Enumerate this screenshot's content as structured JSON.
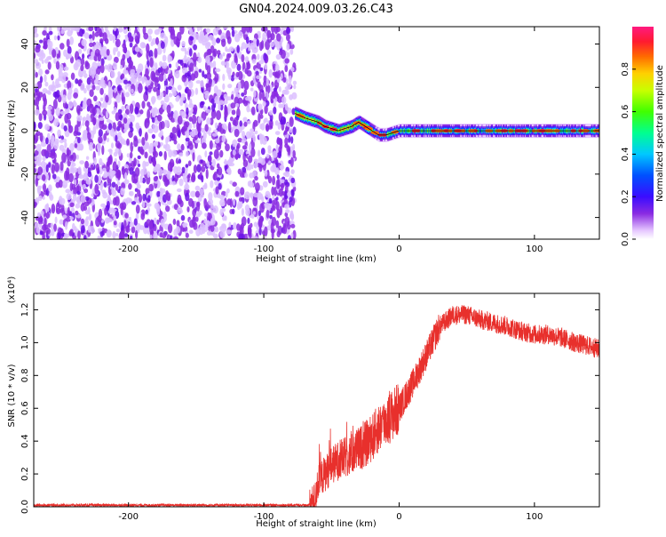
{
  "title": "GN04.2024.009.03.26.C43",
  "chart_data": [
    {
      "type": "heatmap",
      "xlabel": "Height of straight line (km)",
      "ylabel": "Frequency (Hz)",
      "xlim": [
        -270,
        148
      ],
      "ylim": [
        -50,
        48
      ],
      "x_ticks": [
        -200,
        -100,
        0,
        100
      ],
      "y_ticks": [
        -40,
        -20,
        0,
        20,
        40
      ],
      "colorbar": {
        "label": "Normalized spectral amplitude",
        "range": [
          0,
          1
        ],
        "ticks": [
          "0.0",
          "0.2",
          "0.4",
          "0.6",
          "0.8"
        ],
        "colormap": [
          "#ffffff",
          "#e6c8ff",
          "#8a2be2",
          "#3a0cff",
          "#0050ff",
          "#00c8ff",
          "#00ff90",
          "#40ff00",
          "#c8ff00",
          "#ffd000",
          "#ff6a00",
          "#ff1a30",
          "#ff1a80"
        ]
      },
      "regions": [
        {
          "name": "noise",
          "x_range": [
            -270,
            -77
          ],
          "y_range": [
            -50,
            48
          ],
          "amplitude": "low (0.1-0.4)"
        },
        {
          "name": "signal track",
          "x_range": [
            -77,
            148
          ],
          "amplitude": "high (0.6-1.0)",
          "frequency_track": {
            "x": [
              -77,
              -70,
              -60,
              -55,
              -50,
              -45,
              -40,
              -35,
              -30,
              -25,
              -20,
              -15,
              -10,
              -5,
              0,
              10,
              20,
              40,
              60,
              80,
              100,
              120,
              148
            ],
            "y": [
              8,
              6,
              4,
              2,
              1,
              0,
              1,
              2,
              4,
              2,
              0,
              -2,
              -2,
              -1,
              0,
              0,
              0,
              0,
              0,
              0,
              0,
              0,
              0
            ]
          }
        }
      ],
      "grid": false
    },
    {
      "type": "line",
      "xlabel": "Height of straight line (km)",
      "ylabel": "SNR (10 * v/v)",
      "y_multiplier": "(x10⁴)",
      "xlim": [
        -270,
        148
      ],
      "ylim": [
        0,
        1.3
      ],
      "x_ticks": [
        -200,
        -100,
        0,
        100
      ],
      "y_ticks": [
        "0.0",
        "0.2",
        "0.4",
        "0.6",
        "0.8",
        "1.0",
        "1.2"
      ],
      "series": [
        {
          "color": "#e8302c",
          "x": [
            -270,
            -200,
            -100,
            -66,
            -62,
            -60,
            -55,
            -50,
            -45,
            -40,
            -35,
            -30,
            -25,
            -20,
            -15,
            -10,
            -5,
            0,
            10,
            20,
            30,
            40,
            50,
            60,
            70,
            80,
            90,
            100,
            110,
            120,
            130,
            140,
            148
          ],
          "y": [
            0.01,
            0.01,
            0.01,
            0.01,
            0.05,
            0.15,
            0.2,
            0.25,
            0.28,
            0.3,
            0.32,
            0.35,
            0.38,
            0.42,
            0.48,
            0.52,
            0.56,
            0.6,
            0.75,
            0.92,
            1.1,
            1.17,
            1.17,
            1.14,
            1.12,
            1.1,
            1.07,
            1.05,
            1.05,
            1.03,
            1.0,
            0.98,
            0.96
          ]
        }
      ],
      "grid": false
    }
  ]
}
